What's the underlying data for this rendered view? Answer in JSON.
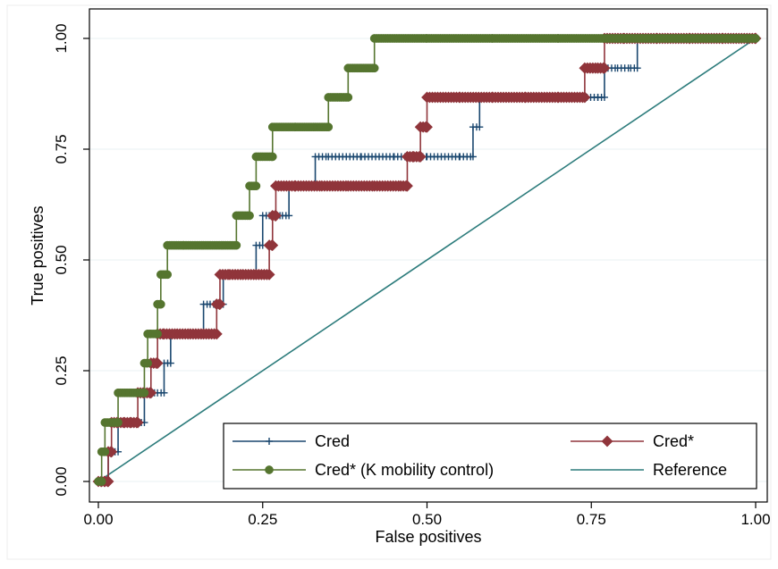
{
  "chart_data": {
    "type": "line",
    "title": "",
    "xlabel": "False positives",
    "ylabel": "True positives",
    "xlim": [
      0,
      1
    ],
    "ylim": [
      0,
      1
    ],
    "x_ticks": [
      "0.00",
      "0.25",
      "0.50",
      "0.75",
      "1.00"
    ],
    "y_ticks": [
      "0.00",
      "0.25",
      "0.50",
      "0.75",
      "1.00"
    ],
    "grid": true,
    "legend_position": "bottom-right",
    "series": [
      {
        "name": "Cred",
        "color": "#1a476f",
        "marker": "plus",
        "points": [
          [
            0.0,
            0.0
          ],
          [
            0.005,
            0.0
          ],
          [
            0.01,
            0.0
          ],
          [
            0.015,
            0.0
          ],
          [
            0.015,
            0.067
          ],
          [
            0.02,
            0.067
          ],
          [
            0.03,
            0.067
          ],
          [
            0.03,
            0.133
          ],
          [
            0.04,
            0.133
          ],
          [
            0.05,
            0.133
          ],
          [
            0.06,
            0.133
          ],
          [
            0.07,
            0.133
          ],
          [
            0.07,
            0.2
          ],
          [
            0.08,
            0.2
          ],
          [
            0.09,
            0.2
          ],
          [
            0.1,
            0.2
          ],
          [
            0.1,
            0.267
          ],
          [
            0.11,
            0.267
          ],
          [
            0.11,
            0.333
          ],
          [
            0.12,
            0.333
          ],
          [
            0.14,
            0.333
          ],
          [
            0.16,
            0.333
          ],
          [
            0.16,
            0.4
          ],
          [
            0.17,
            0.4
          ],
          [
            0.18,
            0.4
          ],
          [
            0.19,
            0.4
          ],
          [
            0.19,
            0.467
          ],
          [
            0.2,
            0.467
          ],
          [
            0.22,
            0.467
          ],
          [
            0.24,
            0.467
          ],
          [
            0.24,
            0.533
          ],
          [
            0.25,
            0.533
          ],
          [
            0.25,
            0.6
          ],
          [
            0.26,
            0.6
          ],
          [
            0.28,
            0.6
          ],
          [
            0.29,
            0.6
          ],
          [
            0.29,
            0.667
          ],
          [
            0.3,
            0.667
          ],
          [
            0.31,
            0.667
          ],
          [
            0.32,
            0.667
          ],
          [
            0.33,
            0.667
          ],
          [
            0.33,
            0.733
          ],
          [
            0.35,
            0.733
          ],
          [
            0.4,
            0.733
          ],
          [
            0.45,
            0.733
          ],
          [
            0.5,
            0.733
          ],
          [
            0.55,
            0.733
          ],
          [
            0.57,
            0.733
          ],
          [
            0.57,
            0.8
          ],
          [
            0.58,
            0.8
          ],
          [
            0.58,
            0.867
          ],
          [
            0.62,
            0.867
          ],
          [
            0.66,
            0.867
          ],
          [
            0.7,
            0.867
          ],
          [
            0.76,
            0.867
          ],
          [
            0.77,
            0.867
          ],
          [
            0.77,
            0.933
          ],
          [
            0.79,
            0.933
          ],
          [
            0.81,
            0.933
          ],
          [
            0.82,
            0.933
          ],
          [
            0.82,
            1.0
          ],
          [
            0.86,
            1.0
          ],
          [
            0.92,
            1.0
          ],
          [
            0.98,
            1.0
          ],
          [
            1.0,
            1.0
          ]
        ]
      },
      {
        "name": "Cred*",
        "color": "#90353b",
        "marker": "diamond",
        "points": [
          [
            0.0,
            0.0
          ],
          [
            0.005,
            0.0
          ],
          [
            0.01,
            0.0
          ],
          [
            0.015,
            0.0
          ],
          [
            0.015,
            0.067
          ],
          [
            0.02,
            0.067
          ],
          [
            0.02,
            0.133
          ],
          [
            0.03,
            0.133
          ],
          [
            0.04,
            0.133
          ],
          [
            0.05,
            0.133
          ],
          [
            0.06,
            0.133
          ],
          [
            0.06,
            0.2
          ],
          [
            0.07,
            0.2
          ],
          [
            0.08,
            0.2
          ],
          [
            0.08,
            0.267
          ],
          [
            0.09,
            0.267
          ],
          [
            0.09,
            0.333
          ],
          [
            0.1,
            0.333
          ],
          [
            0.12,
            0.333
          ],
          [
            0.14,
            0.333
          ],
          [
            0.16,
            0.333
          ],
          [
            0.18,
            0.333
          ],
          [
            0.18,
            0.4
          ],
          [
            0.185,
            0.4
          ],
          [
            0.185,
            0.467
          ],
          [
            0.2,
            0.467
          ],
          [
            0.22,
            0.467
          ],
          [
            0.24,
            0.467
          ],
          [
            0.26,
            0.467
          ],
          [
            0.26,
            0.533
          ],
          [
            0.265,
            0.533
          ],
          [
            0.265,
            0.6
          ],
          [
            0.27,
            0.6
          ],
          [
            0.27,
            0.667
          ],
          [
            0.3,
            0.667
          ],
          [
            0.34,
            0.667
          ],
          [
            0.38,
            0.667
          ],
          [
            0.42,
            0.667
          ],
          [
            0.46,
            0.667
          ],
          [
            0.47,
            0.667
          ],
          [
            0.47,
            0.733
          ],
          [
            0.48,
            0.733
          ],
          [
            0.49,
            0.733
          ],
          [
            0.49,
            0.8
          ],
          [
            0.5,
            0.8
          ],
          [
            0.5,
            0.867
          ],
          [
            0.55,
            0.867
          ],
          [
            0.6,
            0.867
          ],
          [
            0.65,
            0.867
          ],
          [
            0.7,
            0.867
          ],
          [
            0.74,
            0.867
          ],
          [
            0.74,
            0.933
          ],
          [
            0.76,
            0.933
          ],
          [
            0.77,
            0.933
          ],
          [
            0.77,
            1.0
          ],
          [
            0.8,
            1.0
          ],
          [
            0.85,
            1.0
          ],
          [
            0.9,
            1.0
          ],
          [
            0.95,
            1.0
          ],
          [
            1.0,
            1.0
          ]
        ]
      },
      {
        "name": "Cred* (K mobility control)",
        "color": "#55752f",
        "marker": "circle",
        "points": [
          [
            0.0,
            0.0
          ],
          [
            0.005,
            0.0
          ],
          [
            0.005,
            0.067
          ],
          [
            0.01,
            0.067
          ],
          [
            0.01,
            0.133
          ],
          [
            0.02,
            0.133
          ],
          [
            0.03,
            0.133
          ],
          [
            0.03,
            0.2
          ],
          [
            0.05,
            0.2
          ],
          [
            0.07,
            0.2
          ],
          [
            0.07,
            0.267
          ],
          [
            0.075,
            0.267
          ],
          [
            0.075,
            0.333
          ],
          [
            0.08,
            0.333
          ],
          [
            0.09,
            0.333
          ],
          [
            0.09,
            0.4
          ],
          [
            0.095,
            0.4
          ],
          [
            0.095,
            0.467
          ],
          [
            0.105,
            0.467
          ],
          [
            0.105,
            0.533
          ],
          [
            0.13,
            0.533
          ],
          [
            0.16,
            0.533
          ],
          [
            0.19,
            0.533
          ],
          [
            0.21,
            0.533
          ],
          [
            0.21,
            0.6
          ],
          [
            0.22,
            0.6
          ],
          [
            0.23,
            0.6
          ],
          [
            0.23,
            0.667
          ],
          [
            0.24,
            0.667
          ],
          [
            0.24,
            0.733
          ],
          [
            0.25,
            0.733
          ],
          [
            0.265,
            0.733
          ],
          [
            0.265,
            0.8
          ],
          [
            0.3,
            0.8
          ],
          [
            0.33,
            0.8
          ],
          [
            0.35,
            0.8
          ],
          [
            0.35,
            0.867
          ],
          [
            0.37,
            0.867
          ],
          [
            0.38,
            0.867
          ],
          [
            0.38,
            0.933
          ],
          [
            0.4,
            0.933
          ],
          [
            0.42,
            0.933
          ],
          [
            0.42,
            1.0
          ],
          [
            0.5,
            1.0
          ],
          [
            0.6,
            1.0
          ],
          [
            0.7,
            1.0
          ],
          [
            0.8,
            1.0
          ],
          [
            0.9,
            1.0
          ],
          [
            1.0,
            1.0
          ]
        ]
      },
      {
        "name": "Reference",
        "color": "#2d7c7c",
        "marker": "none",
        "points": [
          [
            0.0,
            0.0
          ],
          [
            1.0,
            1.0
          ]
        ]
      }
    ]
  }
}
